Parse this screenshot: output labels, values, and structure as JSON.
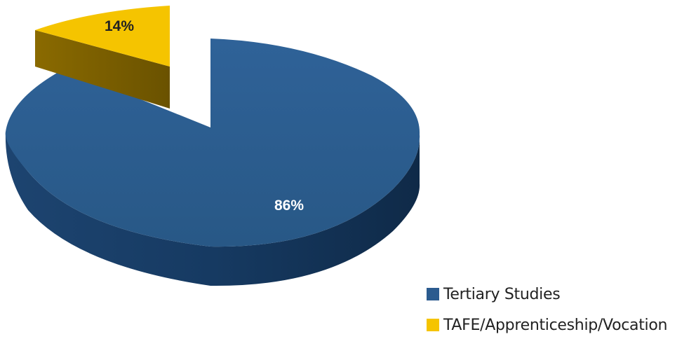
{
  "chart_data": {
    "type": "pie",
    "style": "3d-exploded",
    "categories": [
      "Tertiary Studies",
      "TAFE/Apprenticeship/Vocation"
    ],
    "values": [
      86,
      14
    ],
    "labels": [
      "86%",
      "14%"
    ],
    "colors": [
      "#2b5b8f",
      "#f5c400"
    ],
    "label_colors": [
      "#ffffff",
      "#222222"
    ],
    "legend_position": "bottom-right"
  }
}
